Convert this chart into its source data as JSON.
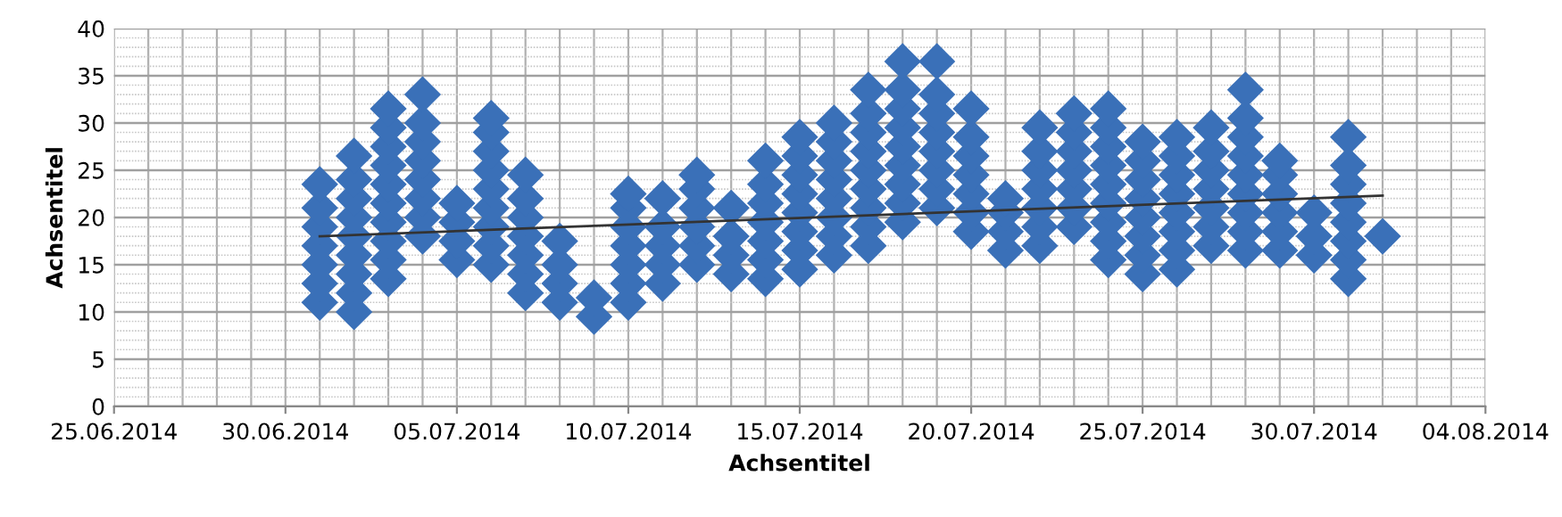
{
  "chart_data": {
    "type": "scatter",
    "xlabel": "Achsentitel",
    "ylabel": "Achsentitel",
    "xlim": [
      "2014-06-25",
      "2014-08-04"
    ],
    "ylim": [
      0,
      40
    ],
    "xticks": [
      {
        "value": "2014-06-25",
        "label": "25.06.2014"
      },
      {
        "value": "2014-06-30",
        "label": "30.06.2014"
      },
      {
        "value": "2014-07-05",
        "label": "05.07.2014"
      },
      {
        "value": "2014-07-10",
        "label": "10.07.2014"
      },
      {
        "value": "2014-07-15",
        "label": "15.07.2014"
      },
      {
        "value": "2014-07-20",
        "label": "20.07.2014"
      },
      {
        "value": "2014-07-25",
        "label": "25.07.2014"
      },
      {
        "value": "2014-07-30",
        "label": "30.07.2014"
      },
      {
        "value": "2014-08-04",
        "label": "04.08.2014"
      }
    ],
    "yticks": [
      0,
      5,
      10,
      15,
      20,
      25,
      30,
      35,
      40
    ],
    "grid": true,
    "legend": false,
    "marker": "diamond",
    "series": [
      {
        "color": "#3a70b8",
        "x": [
          "2014-07-01",
          "2014-07-01",
          "2014-07-01",
          "2014-07-01",
          "2014-07-01",
          "2014-07-01",
          "2014-07-01",
          "2014-07-02",
          "2014-07-02",
          "2014-07-02",
          "2014-07-02",
          "2014-07-02",
          "2014-07-02",
          "2014-07-02",
          "2014-07-02",
          "2014-07-02",
          "2014-07-03",
          "2014-07-03",
          "2014-07-03",
          "2014-07-03",
          "2014-07-03",
          "2014-07-03",
          "2014-07-03",
          "2014-07-03",
          "2014-07-03",
          "2014-07-03",
          "2014-07-04",
          "2014-07-04",
          "2014-07-04",
          "2014-07-04",
          "2014-07-04",
          "2014-07-04",
          "2014-07-04",
          "2014-07-04",
          "2014-07-05",
          "2014-07-05",
          "2014-07-05",
          "2014-07-05",
          "2014-07-06",
          "2014-07-06",
          "2014-07-06",
          "2014-07-06",
          "2014-07-06",
          "2014-07-06",
          "2014-07-06",
          "2014-07-06",
          "2014-07-06",
          "2014-07-07",
          "2014-07-07",
          "2014-07-07",
          "2014-07-07",
          "2014-07-07",
          "2014-07-07",
          "2014-07-07",
          "2014-07-08",
          "2014-07-08",
          "2014-07-08",
          "2014-07-08",
          "2014-07-09",
          "2014-07-09",
          "2014-07-10",
          "2014-07-10",
          "2014-07-10",
          "2014-07-10",
          "2014-07-10",
          "2014-07-10",
          "2014-07-10",
          "2014-07-11",
          "2014-07-11",
          "2014-07-11",
          "2014-07-11",
          "2014-07-11",
          "2014-07-12",
          "2014-07-12",
          "2014-07-12",
          "2014-07-12",
          "2014-07-12",
          "2014-07-12",
          "2014-07-13",
          "2014-07-13",
          "2014-07-13",
          "2014-07-13",
          "2014-07-14",
          "2014-07-14",
          "2014-07-14",
          "2014-07-14",
          "2014-07-14",
          "2014-07-14",
          "2014-07-14",
          "2014-07-15",
          "2014-07-15",
          "2014-07-15",
          "2014-07-15",
          "2014-07-15",
          "2014-07-15",
          "2014-07-15",
          "2014-07-15",
          "2014-07-16",
          "2014-07-16",
          "2014-07-16",
          "2014-07-16",
          "2014-07-16",
          "2014-07-16",
          "2014-07-16",
          "2014-07-16",
          "2014-07-17",
          "2014-07-17",
          "2014-07-17",
          "2014-07-17",
          "2014-07-17",
          "2014-07-17",
          "2014-07-17",
          "2014-07-17",
          "2014-07-17",
          "2014-07-18",
          "2014-07-18",
          "2014-07-18",
          "2014-07-18",
          "2014-07-18",
          "2014-07-18",
          "2014-07-18",
          "2014-07-18",
          "2014-07-18",
          "2014-07-19",
          "2014-07-19",
          "2014-07-19",
          "2014-07-19",
          "2014-07-19",
          "2014-07-19",
          "2014-07-19",
          "2014-07-19",
          "2014-07-20",
          "2014-07-20",
          "2014-07-20",
          "2014-07-20",
          "2014-07-20",
          "2014-07-20",
          "2014-07-20",
          "2014-07-21",
          "2014-07-21",
          "2014-07-21",
          "2014-07-21",
          "2014-07-22",
          "2014-07-22",
          "2014-07-22",
          "2014-07-22",
          "2014-07-22",
          "2014-07-22",
          "2014-07-22",
          "2014-07-23",
          "2014-07-23",
          "2014-07-23",
          "2014-07-23",
          "2014-07-23",
          "2014-07-23",
          "2014-07-23",
          "2014-07-24",
          "2014-07-24",
          "2014-07-24",
          "2014-07-24",
          "2014-07-24",
          "2014-07-24",
          "2014-07-24",
          "2014-07-24",
          "2014-07-24",
          "2014-07-25",
          "2014-07-25",
          "2014-07-25",
          "2014-07-25",
          "2014-07-25",
          "2014-07-25",
          "2014-07-25",
          "2014-07-25",
          "2014-07-26",
          "2014-07-26",
          "2014-07-26",
          "2014-07-26",
          "2014-07-26",
          "2014-07-26",
          "2014-07-26",
          "2014-07-26",
          "2014-07-27",
          "2014-07-27",
          "2014-07-27",
          "2014-07-27",
          "2014-07-27",
          "2014-07-27",
          "2014-07-27",
          "2014-07-28",
          "2014-07-28",
          "2014-07-28",
          "2014-07-28",
          "2014-07-28",
          "2014-07-28",
          "2014-07-28",
          "2014-07-28",
          "2014-07-28",
          "2014-07-29",
          "2014-07-29",
          "2014-07-29",
          "2014-07-29",
          "2014-07-29",
          "2014-07-29",
          "2014-07-30",
          "2014-07-30",
          "2014-07-30",
          "2014-07-31",
          "2014-07-31",
          "2014-07-31",
          "2014-07-31",
          "2014-07-31",
          "2014-07-31",
          "2014-07-31",
          "2014-07-31",
          "2014-08-01"
        ],
        "values": [
          11,
          13,
          15,
          17,
          19,
          21,
          23.5,
          10,
          12,
          14,
          16,
          18,
          20,
          22,
          24,
          26.5,
          13.5,
          15.5,
          17.5,
          19.5,
          21.5,
          23.5,
          25.5,
          27.5,
          29.5,
          31.5,
          18,
          20,
          22,
          24,
          26,
          28,
          30,
          33,
          15.5,
          17.5,
          19.5,
          21.5,
          15,
          17,
          19,
          21,
          23,
          25,
          27,
          29,
          30.5,
          12,
          14,
          16,
          18,
          20,
          22,
          24.5,
          11,
          13,
          15,
          17.5,
          9.5,
          11.5,
          11,
          13,
          15,
          17,
          19,
          21,
          22.5,
          13,
          15,
          17,
          19,
          22,
          15,
          17,
          19,
          21,
          23,
          24.5,
          14,
          16,
          18,
          21,
          13.5,
          15.5,
          17.5,
          19.5,
          21.5,
          23.5,
          26,
          14.5,
          16.5,
          18.5,
          20.5,
          22.5,
          24.5,
          26.5,
          28.5,
          16,
          18,
          20,
          22,
          24,
          26,
          28,
          30,
          17,
          19,
          21,
          23,
          25,
          27,
          29,
          31,
          33.5,
          19.5,
          21.5,
          23.5,
          25.5,
          27.5,
          29.5,
          31.5,
          33.5,
          36.5,
          21,
          23,
          25,
          27,
          29,
          31,
          33,
          36.5,
          18.5,
          20.5,
          22.5,
          24.5,
          26.5,
          28.5,
          31.5,
          16.5,
          18.5,
          20.5,
          22,
          17,
          19,
          21,
          23,
          25,
          27,
          29.5,
          19,
          21,
          23,
          25,
          27,
          29,
          31,
          15.5,
          17.5,
          19.5,
          21.5,
          23.5,
          25.5,
          27.5,
          29.5,
          31.5,
          14,
          16,
          18,
          20,
          22,
          24,
          26,
          28,
          14.5,
          16.5,
          18.5,
          20.5,
          22.5,
          24.5,
          26.5,
          28.5,
          17,
          19,
          21,
          23,
          25,
          27,
          29.5,
          16.5,
          18.5,
          20.5,
          22.5,
          24.5,
          26.5,
          28.5,
          30.5,
          33.5,
          16.5,
          18.5,
          20.5,
          22.5,
          24.5,
          26,
          16,
          18,
          20.5,
          13.5,
          15.5,
          17.5,
          19.5,
          21.5,
          23.5,
          25.5,
          28.5,
          18
        ]
      },
      {
        "type": "line",
        "color": "#333333",
        "marker": "none",
        "x": [
          "2014-07-01",
          "2014-08-01"
        ],
        "values": [
          18.0,
          22.3
        ]
      }
    ]
  }
}
